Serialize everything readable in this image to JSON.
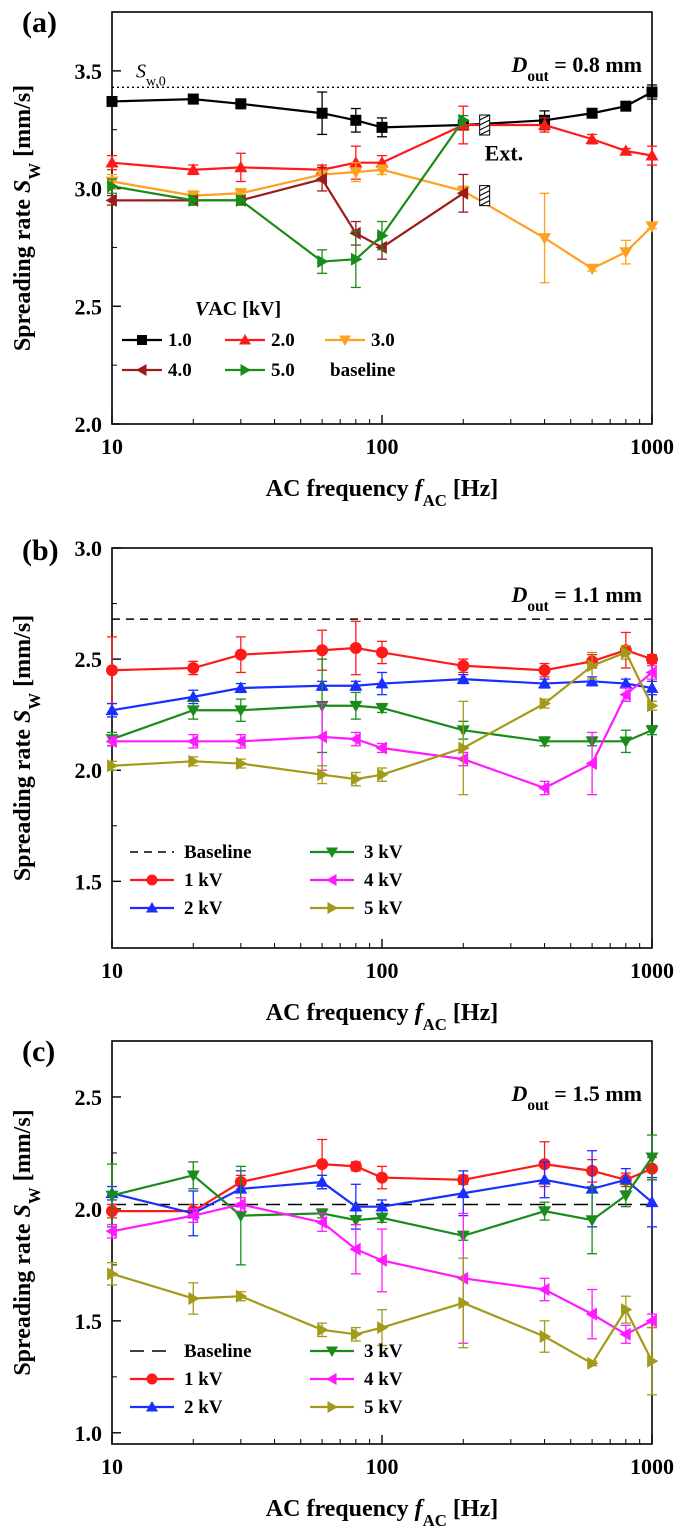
{
  "chart_data": [
    {
      "type": "line",
      "panel": "(a)",
      "xscale": "log",
      "xlim": [
        10,
        1000
      ],
      "ylim": [
        2.0,
        3.75
      ],
      "yticks": [
        "2.0",
        "2.5",
        "3.0",
        "3.5"
      ],
      "xticks": [
        "10",
        "100",
        "1000"
      ],
      "xlabel": "AC frequency f_AC [Hz]",
      "ylabel": "Spreading rate S_W [mm/s]",
      "annotation": "D_out = 0.8 mm",
      "reference_label": "S_w,0",
      "reference_value": 3.43,
      "extra_label": "Ext.",
      "legend_title": "V_AC [kV]",
      "legend_note": "baseline",
      "series": [
        {
          "name": "1.0",
          "color": "#000000",
          "marker": "square",
          "x": [
            10,
            20,
            30,
            60,
            80,
            100,
            200,
            400,
            600,
            800,
            1000
          ],
          "y": [
            3.37,
            3.38,
            3.36,
            3.32,
            3.29,
            3.26,
            3.27,
            3.29,
            3.32,
            3.35,
            3.41
          ],
          "err": [
            0.01,
            0.02,
            0.02,
            0.09,
            0.05,
            0.04,
            0.02,
            0.04,
            0.01,
            0.01,
            0.03
          ]
        },
        {
          "name": "2.0",
          "color": "#ff1a1a",
          "marker": "triangle-up",
          "x": [
            10,
            20,
            30,
            60,
            80,
            100,
            200,
            400,
            600,
            800,
            1000
          ],
          "y": [
            3.11,
            3.08,
            3.09,
            3.08,
            3.11,
            3.11,
            3.27,
            3.27,
            3.21,
            3.16,
            3.14
          ],
          "err": [
            0.03,
            0.02,
            0.06,
            0.02,
            0.07,
            0.03,
            0.08,
            0.03,
            0.02,
            0.01,
            0.04
          ]
        },
        {
          "name": "3.0",
          "color": "#ffa020",
          "marker": "triangle-down",
          "x": [
            10,
            20,
            30,
            60,
            80,
            100,
            200,
            400,
            600,
            800,
            1000
          ],
          "y": [
            3.03,
            2.97,
            2.98,
            3.06,
            3.07,
            3.08,
            2.99,
            2.79,
            2.66,
            2.73,
            2.84
          ],
          "err": [
            0.03,
            0.02,
            0.02,
            0.03,
            0.04,
            0.02,
            0.02,
            0.19,
            0.01,
            0.05,
            0.01
          ]
        },
        {
          "name": "4.0",
          "color": "#9b1c1c",
          "marker": "triangle-left",
          "x": [
            10,
            20,
            30,
            60,
            80,
            100,
            200
          ],
          "y": [
            2.95,
            2.95,
            2.95,
            3.04,
            2.81,
            2.75,
            2.98
          ],
          "err": [
            0.02,
            0.02,
            0.02,
            0.05,
            0.05,
            0.05,
            0.08
          ]
        },
        {
          "name": "5.0",
          "color": "#1a8c1a",
          "marker": "triangle-right",
          "x": [
            10,
            20,
            30,
            60,
            80,
            100,
            200
          ],
          "y": [
            3.01,
            2.95,
            2.95,
            2.69,
            2.7,
            2.8,
            3.29
          ],
          "err": [
            0.03,
            0.02,
            0.02,
            0.05,
            0.12,
            0.06,
            0.02
          ]
        }
      ]
    },
    {
      "type": "line",
      "panel": "(b)",
      "xscale": "log",
      "xlim": [
        10,
        1000
      ],
      "ylim": [
        1.2,
        3.0
      ],
      "yticks": [
        "1.5",
        "2.0",
        "2.5",
        "3.0"
      ],
      "xticks": [
        "10",
        "100",
        "1000"
      ],
      "xlabel": "AC frequency f_AC [Hz]",
      "ylabel": "Spreading rate S_W [mm/s]",
      "annotation": "D_out = 1.1 mm",
      "baseline_value": 2.68,
      "series": [
        {
          "name": "Baseline",
          "color": "#000000",
          "marker": "none",
          "dashed": true,
          "x": [
            10,
            1000
          ],
          "y": [
            2.68,
            2.68
          ],
          "err": [
            0,
            0
          ]
        },
        {
          "name": "1 kV",
          "color": "#ff1a1a",
          "marker": "circle",
          "x": [
            10,
            20,
            30,
            60,
            80,
            100,
            200,
            400,
            600,
            800,
            1000
          ],
          "y": [
            2.45,
            2.46,
            2.52,
            2.54,
            2.55,
            2.53,
            2.47,
            2.45,
            2.49,
            2.54,
            2.5
          ],
          "err": [
            0.15,
            0.03,
            0.08,
            0.09,
            0.12,
            0.05,
            0.03,
            0.03,
            0.03,
            0.08,
            0.02
          ]
        },
        {
          "name": "2 kV",
          "color": "#1a2eff",
          "marker": "triangle-up",
          "x": [
            10,
            20,
            30,
            60,
            80,
            100,
            200,
            400,
            600,
            800,
            1000
          ],
          "y": [
            2.27,
            2.33,
            2.37,
            2.38,
            2.38,
            2.39,
            2.41,
            2.39,
            2.4,
            2.39,
            2.37
          ],
          "err": [
            0.03,
            0.03,
            0.02,
            0.02,
            0.02,
            0.05,
            0.02,
            0.02,
            0.02,
            0.02,
            0.03
          ]
        },
        {
          "name": "3 kV",
          "color": "#1a8c1a",
          "marker": "triangle-down",
          "x": [
            10,
            20,
            30,
            60,
            80,
            100,
            200,
            400,
            600,
            800,
            1000
          ],
          "y": [
            2.14,
            2.27,
            2.27,
            2.29,
            2.29,
            2.28,
            2.18,
            2.13,
            2.13,
            2.13,
            2.18
          ],
          "err": [
            0.03,
            0.04,
            0.05,
            0.21,
            0.06,
            0.02,
            0.04,
            0.02,
            0.02,
            0.05,
            0.02
          ]
        },
        {
          "name": "4 kV",
          "color": "#ff1aff",
          "marker": "triangle-left",
          "x": [
            10,
            20,
            30,
            60,
            80,
            100,
            200,
            400,
            600,
            800,
            1000
          ],
          "y": [
            2.13,
            2.13,
            2.13,
            2.15,
            2.14,
            2.1,
            2.05,
            1.92,
            2.03,
            2.34,
            2.44
          ],
          "err": [
            0.02,
            0.03,
            0.03,
            0.15,
            0.03,
            0.02,
            0.03,
            0.03,
            0.14,
            0.03,
            0.03
          ]
        },
        {
          "name": "5 kV",
          "color": "#a39a1a",
          "marker": "triangle-right",
          "x": [
            10,
            20,
            30,
            60,
            80,
            100,
            200,
            400,
            600,
            800,
            1000
          ],
          "y": [
            2.02,
            2.04,
            2.03,
            1.98,
            1.96,
            1.98,
            2.1,
            2.3,
            2.47,
            2.53,
            2.29
          ],
          "err": [
            0.02,
            0.02,
            0.02,
            0.04,
            0.03,
            0.03,
            0.21,
            0.02,
            0.06,
            0.03,
            0.02
          ]
        }
      ],
      "legend": [
        "Baseline",
        "3 kV",
        "1 kV",
        "4 kV",
        "2 kV",
        "5 kV"
      ]
    },
    {
      "type": "line",
      "panel": "(c)",
      "xscale": "log",
      "xlim": [
        10,
        1000
      ],
      "ylim": [
        0.95,
        2.75
      ],
      "yticks": [
        "1.0",
        "1.5",
        "2.0",
        "2.5"
      ],
      "xticks": [
        "10",
        "100",
        "1000"
      ],
      "xlabel": "AC frequency f_AC [Hz]",
      "ylabel": "Spreading rate S_W [mm/s]",
      "annotation": "D_out = 1.5 mm",
      "baseline_value": 2.02,
      "series": [
        {
          "name": "Baseline",
          "color": "#000000",
          "marker": "none",
          "dashed": true,
          "x": [
            10,
            1000
          ],
          "y": [
            2.02,
            2.02
          ],
          "err": [
            0,
            0
          ]
        },
        {
          "name": "1 kV",
          "color": "#ff1a1a",
          "marker": "circle",
          "x": [
            10,
            20,
            30,
            60,
            80,
            100,
            200,
            400,
            600,
            800,
            1000
          ],
          "y": [
            1.99,
            1.99,
            2.12,
            2.2,
            2.19,
            2.14,
            2.13,
            2.2,
            2.17,
            2.13,
            2.18
          ],
          "err": [
            0.03,
            0.03,
            0.03,
            0.11,
            0.02,
            0.05,
            0.02,
            0.1,
            0.05,
            0.03,
            0.05
          ]
        },
        {
          "name": "2 kV",
          "color": "#1a2eff",
          "marker": "triangle-up",
          "x": [
            10,
            20,
            30,
            60,
            80,
            100,
            200,
            400,
            600,
            800,
            1000
          ],
          "y": [
            2.07,
            1.98,
            2.09,
            2.12,
            2.01,
            2.01,
            2.07,
            2.13,
            2.09,
            2.13,
            2.03
          ],
          "err": [
            0.03,
            0.1,
            0.08,
            0.03,
            0.1,
            0.03,
            0.1,
            0.08,
            0.17,
            0.05,
            0.11
          ]
        },
        {
          "name": "3 kV",
          "color": "#1a8c1a",
          "marker": "triangle-down",
          "x": [
            10,
            20,
            30,
            60,
            80,
            100,
            200,
            400,
            600,
            800,
            1000
          ],
          "y": [
            2.06,
            2.15,
            1.97,
            1.98,
            1.95,
            1.96,
            1.88,
            1.99,
            1.95,
            2.06,
            2.23
          ],
          "err": [
            0.14,
            0.06,
            0.22,
            0.02,
            0.02,
            0.02,
            0.02,
            0.04,
            0.15,
            0.05,
            0.1
          ]
        },
        {
          "name": "4 kV",
          "color": "#ff1aff",
          "marker": "triangle-left",
          "x": [
            10,
            20,
            30,
            60,
            80,
            100,
            200,
            400,
            600,
            800,
            1000
          ],
          "y": [
            1.9,
            1.97,
            2.02,
            1.94,
            1.82,
            1.77,
            1.69,
            1.64,
            1.53,
            1.44,
            1.5
          ],
          "err": [
            0.03,
            0.03,
            0.03,
            0.04,
            0.11,
            0.14,
            0.29,
            0.05,
            0.11,
            0.04,
            0.03
          ]
        },
        {
          "name": "5 kV",
          "color": "#a39a1a",
          "marker": "triangle-right",
          "x": [
            10,
            20,
            30,
            60,
            80,
            100,
            200,
            400,
            600,
            800,
            1000
          ],
          "y": [
            1.71,
            1.6,
            1.61,
            1.46,
            1.44,
            1.47,
            1.58,
            1.43,
            1.31,
            1.55,
            1.32
          ],
          "err": [
            0.05,
            0.07,
            0.02,
            0.03,
            0.03,
            0.08,
            0.2,
            0.07,
            0.01,
            0.06,
            0.15
          ]
        }
      ],
      "legend": [
        "Baseline",
        "3 kV",
        "1 kV",
        "4 kV",
        "2 kV",
        "5 kV"
      ]
    }
  ]
}
